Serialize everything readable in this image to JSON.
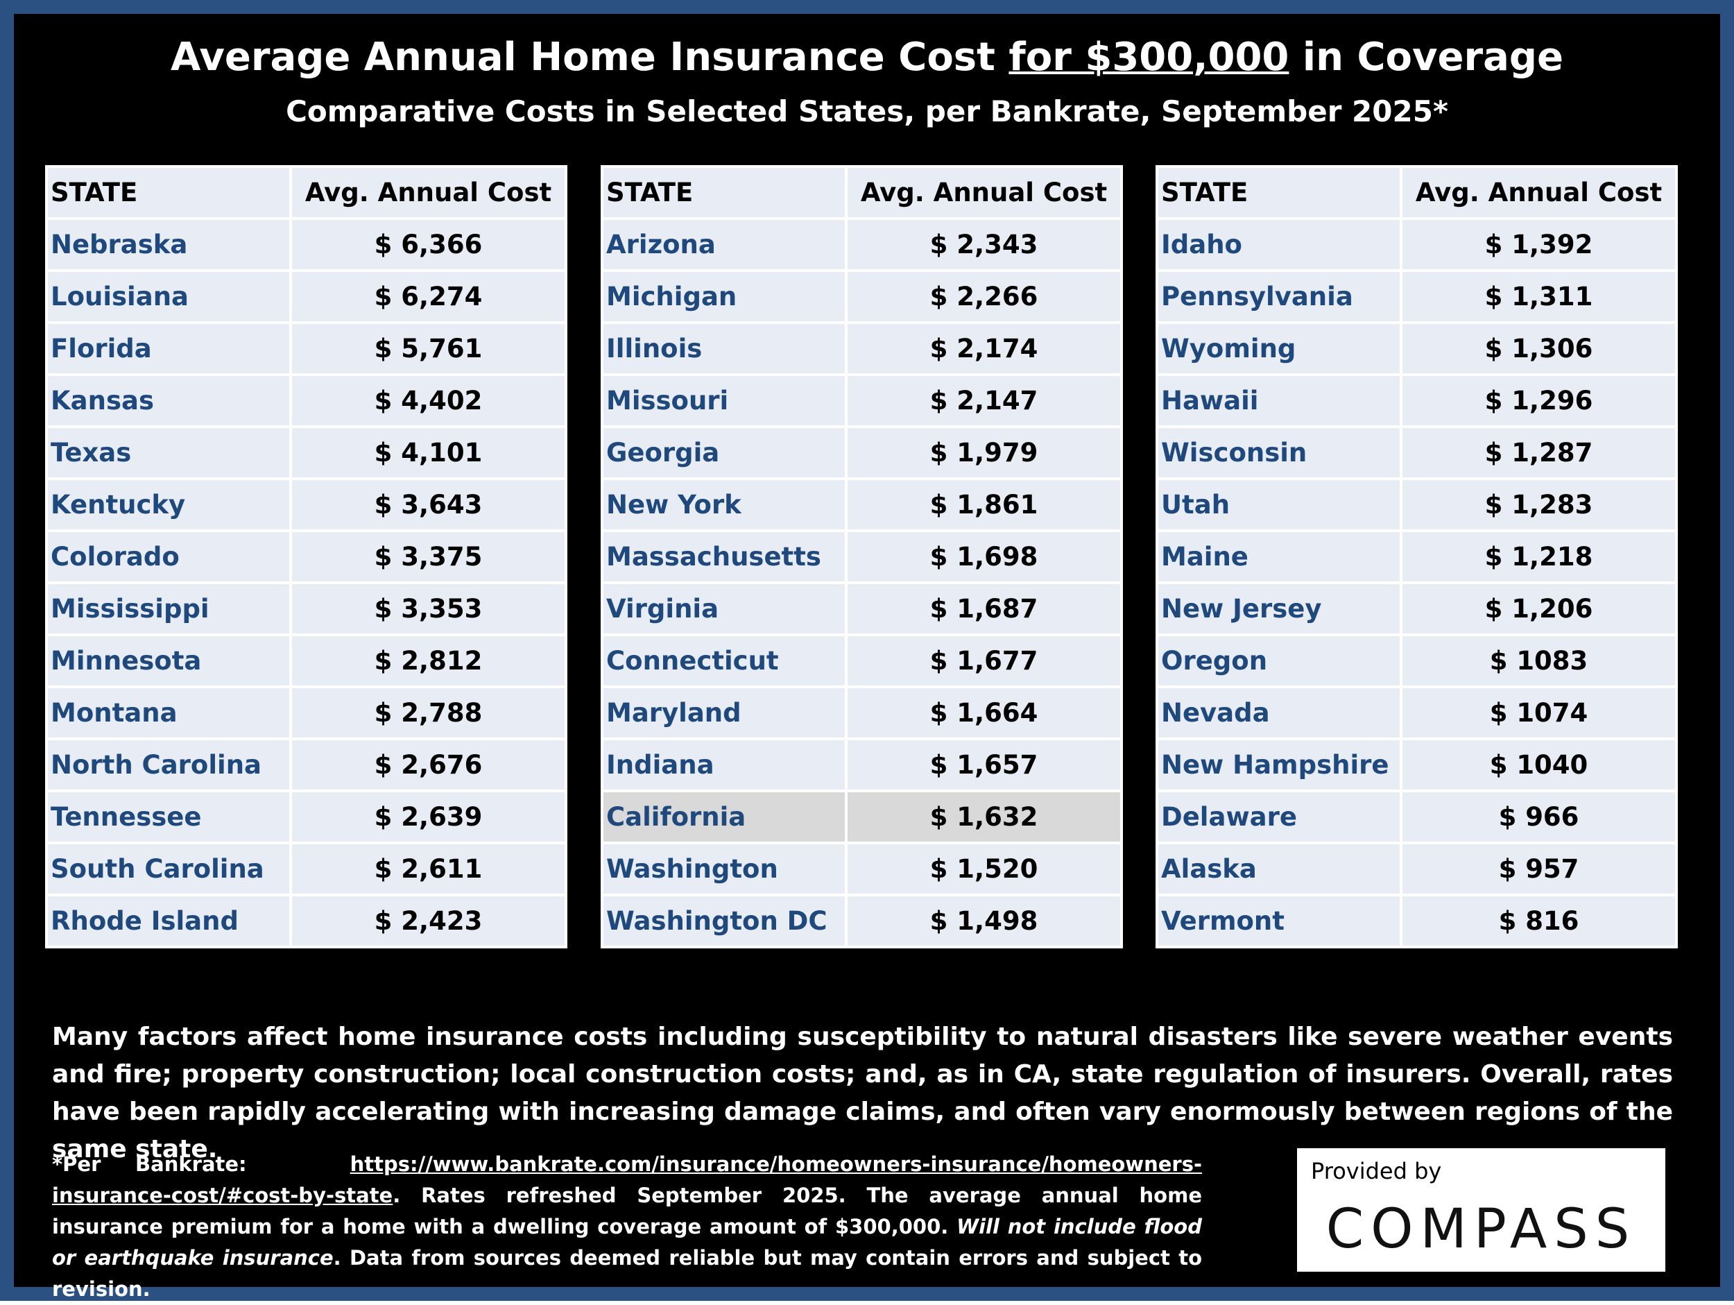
{
  "title": {
    "before": "Average Annual Home Insurance Cost",
    "underlined": "for $300,000",
    "after": "in Coverage"
  },
  "subtitle": "Comparative Costs in Selected States, per Bankrate, September 2025*",
  "tables": [
    {
      "header": [
        "STATE",
        "Avg. Annual Cost"
      ],
      "rows": [
        [
          "Nebraska",
          "$ 6,366"
        ],
        [
          "Louisiana",
          "$ 6,274"
        ],
        [
          "Florida",
          "$ 5,761"
        ],
        [
          "Kansas",
          "$ 4,402"
        ],
        [
          "Texas",
          "$ 4,101"
        ],
        [
          "Kentucky",
          "$ 3,643"
        ],
        [
          "Colorado",
          "$ 3,375"
        ],
        [
          "Mississippi",
          "$ 3,353"
        ],
        [
          "Minnesota",
          "$ 2,812"
        ],
        [
          "Montana",
          "$ 2,788"
        ],
        [
          "North Carolina",
          "$ 2,676"
        ],
        [
          "Tennessee",
          "$ 2,639"
        ],
        [
          "South Carolina",
          "$ 2,611"
        ],
        [
          "Rhode Island",
          "$ 2,423"
        ]
      ]
    },
    {
      "header": [
        "STATE",
        "Avg. Annual Cost"
      ],
      "rows": [
        [
          "Arizona",
          "$ 2,343"
        ],
        [
          "Michigan",
          "$ 2,266"
        ],
        [
          "Illinois",
          "$ 2,174"
        ],
        [
          "Missouri",
          "$ 2,147"
        ],
        [
          "Georgia",
          "$ 1,979"
        ],
        [
          "New York",
          "$ 1,861"
        ],
        [
          "Massachusetts",
          "$ 1,698"
        ],
        [
          "Virginia",
          "$ 1,687"
        ],
        [
          "Connecticut",
          "$ 1,677"
        ],
        [
          "Maryland",
          "$ 1,664"
        ],
        [
          "Indiana",
          "$ 1,657"
        ],
        [
          "California",
          "$ 1,632"
        ],
        [
          "Washington",
          "$ 1,520"
        ],
        [
          "Washington DC",
          "$ 1,498"
        ]
      ]
    },
    {
      "header": [
        "STATE",
        "Avg. Annual Cost"
      ],
      "rows": [
        [
          "Idaho",
          "$ 1,392"
        ],
        [
          "Pennsylvania",
          "$ 1,311"
        ],
        [
          "Wyoming",
          "$ 1,306"
        ],
        [
          "Hawaii",
          "$ 1,296"
        ],
        [
          "Wisconsin",
          "$ 1,287"
        ],
        [
          "Utah",
          "$ 1,283"
        ],
        [
          "Maine",
          "$ 1,218"
        ],
        [
          "New Jersey",
          "$ 1,206"
        ],
        [
          "Oregon",
          "$ 1083"
        ],
        [
          "Nevada",
          "$ 1074"
        ],
        [
          "New Hampshire",
          "$ 1040"
        ],
        [
          "Delaware",
          "$ 966"
        ],
        [
          "Alaska",
          "$ 957"
        ],
        [
          "Vermont",
          "$ 816"
        ]
      ]
    }
  ],
  "highlighted": "California",
  "paragraph": "Many factors affect home insurance costs including susceptibility to natural disasters like severe weather events and fire; property construction; local construction costs; and, as in CA, state regulation of insurers. Overall, rates have been rapidly accelerating with increasing damage claims, and often vary enormously between regions of the same state.",
  "footnote": {
    "lead": "*Per Bankrate:",
    "link": "https://www.bankrate.com/insurance/homeowners-insurance/homeowners-insurance-cost/#cost-by-state",
    "text1": ". Rates refreshed September 2025. The average annual home insurance premium for a home with a dwelling coverage amount of $300,000.",
    "italic": "Will not include flood or earthquake insurance",
    "text2": ". Data from sources deemed reliable but may contain errors and subject to revision."
  },
  "logo": {
    "caption": "Provided by",
    "brand": "COMPASS"
  }
}
